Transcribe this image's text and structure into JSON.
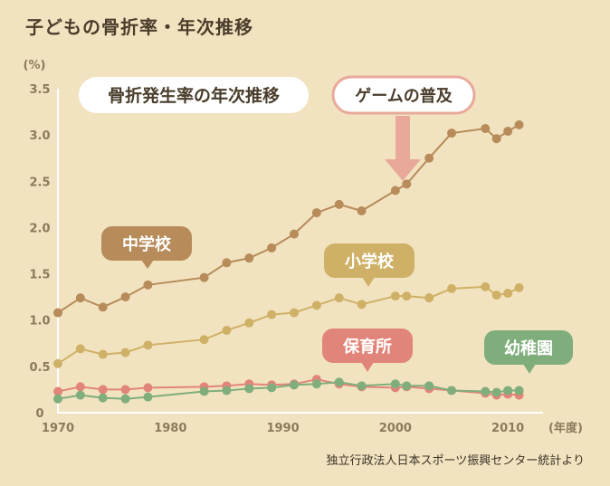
{
  "page": {
    "title": "子どもの骨折率・年次推移",
    "source": "独立行政法人日本スポーツ振興センター統計より"
  },
  "callouts": {
    "chart_title": "骨折発生率の年次推移",
    "game": "ゲームの普及",
    "junior_high": "中学校",
    "elementary": "小学校",
    "nursery": "保育所",
    "kindergarten": "幼稚園"
  },
  "colors": {
    "background": "#f2e3c0",
    "junior_high": "#b78b5a",
    "elementary": "#cfb067",
    "nursery": "#e1857a",
    "kindergarten": "#7fae7c",
    "game_arrow": "#e8a99b"
  },
  "chart_data": {
    "type": "line",
    "ylabel": "(%)",
    "xlabel": "(年度)",
    "xlim": [
      1970,
      2012
    ],
    "ylim": [
      0,
      3.5
    ],
    "x_ticks": [
      "1970",
      "1980",
      "1990",
      "2000",
      "2010"
    ],
    "y_ticks": [
      "0",
      "0.5",
      "1.0",
      "1.5",
      "2.0",
      "2.5",
      "3.0",
      "3.5"
    ],
    "series": [
      {
        "name": "中学校",
        "color": "#b78b5a",
        "x": [
          1970,
          1972,
          1974,
          1976,
          1978,
          1983,
          1985,
          1987,
          1989,
          1991,
          1993,
          1995,
          1997,
          2000,
          2001,
          2003,
          2005,
          2008,
          2009,
          2010,
          2011
        ],
        "y": [
          1.08,
          1.24,
          1.14,
          1.25,
          1.38,
          1.46,
          1.62,
          1.67,
          1.78,
          1.93,
          2.16,
          2.25,
          2.18,
          2.4,
          2.47,
          2.75,
          3.02,
          3.07,
          2.96,
          3.04,
          3.11
        ]
      },
      {
        "name": "小学校",
        "color": "#cfb067",
        "x": [
          1970,
          1972,
          1974,
          1976,
          1978,
          1983,
          1985,
          1987,
          1989,
          1991,
          1993,
          1995,
          1997,
          2000,
          2001,
          2003,
          2005,
          2008,
          2009,
          2010,
          2011
        ],
        "y": [
          0.53,
          0.69,
          0.63,
          0.65,
          0.73,
          0.79,
          0.89,
          0.97,
          1.06,
          1.08,
          1.16,
          1.24,
          1.17,
          1.26,
          1.26,
          1.24,
          1.34,
          1.36,
          1.27,
          1.29,
          1.35
        ]
      },
      {
        "name": "保育所",
        "color": "#e1857a",
        "x": [
          1970,
          1972,
          1974,
          1976,
          1978,
          1983,
          1985,
          1987,
          1989,
          1991,
          1993,
          1995,
          1997,
          2000,
          2001,
          2003,
          2005,
          2008,
          2009,
          2010,
          2011
        ],
        "y": [
          0.23,
          0.28,
          0.25,
          0.25,
          0.27,
          0.28,
          0.29,
          0.31,
          0.3,
          0.31,
          0.36,
          0.31,
          0.28,
          0.27,
          0.28,
          0.26,
          0.24,
          0.21,
          0.19,
          0.2,
          0.19
        ]
      },
      {
        "name": "幼稚園",
        "color": "#7fae7c",
        "x": [
          1970,
          1972,
          1974,
          1976,
          1978,
          1983,
          1985,
          1987,
          1989,
          1991,
          1993,
          1995,
          1997,
          2000,
          2001,
          2003,
          2005,
          2008,
          2009,
          2010,
          2011
        ],
        "y": [
          0.15,
          0.19,
          0.16,
          0.15,
          0.17,
          0.23,
          0.24,
          0.26,
          0.27,
          0.3,
          0.31,
          0.33,
          0.29,
          0.31,
          0.29,
          0.29,
          0.24,
          0.23,
          0.22,
          0.24,
          0.24
        ]
      }
    ]
  }
}
